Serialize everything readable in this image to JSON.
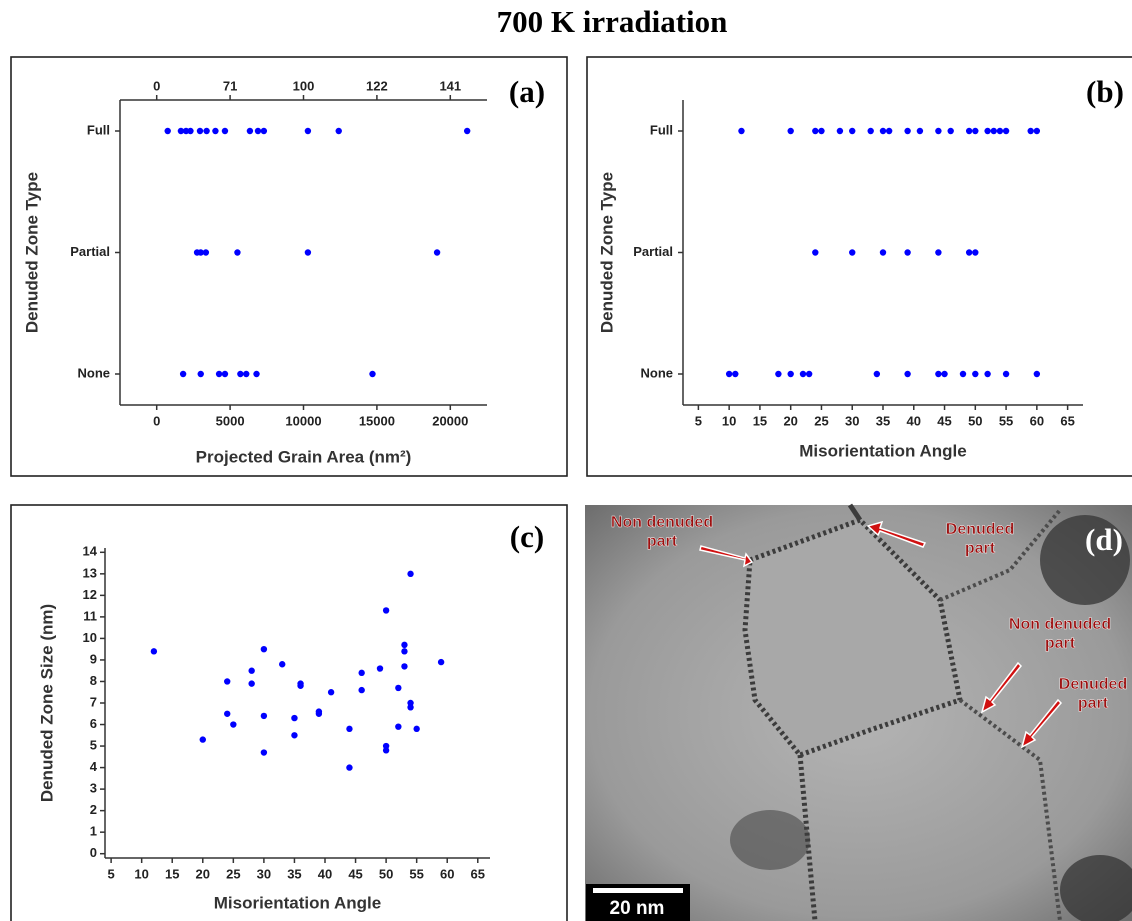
{
  "title": "700 K irradiation",
  "chart_data": [
    {
      "type": "strip",
      "panel_label": "(a)",
      "xlabel": "Projected Grain Area (nm²)",
      "ylabel": "Denuded Zone Type",
      "xlim": [
        -2500,
        22500
      ],
      "xticks": [
        0,
        5000,
        10000,
        15000,
        20000
      ],
      "x2ticks": [
        0,
        {
          "value": 5000,
          "label": "71"
        },
        {
          "value": 10000,
          "label": "100"
        },
        {
          "value": 15000,
          "label": "122"
        },
        {
          "value": 20000,
          "label": "141"
        }
      ],
      "color": "#0000ff",
      "groups": [
        {
          "category": "Full",
          "values": [
            750,
            1650,
            2000,
            2300,
            2950,
            3400,
            4000,
            4650,
            6350,
            6900,
            7300,
            10300,
            12400,
            21150
          ]
        },
        {
          "category": "Partial",
          "values": [
            2750,
            3000,
            3350,
            5500,
            10300,
            19100
          ]
        },
        {
          "category": "None",
          "values": [
            1800,
            3000,
            4250,
            4650,
            5700,
            6100,
            6800,
            14700
          ]
        }
      ]
    },
    {
      "type": "strip",
      "panel_label": "(b)",
      "xlabel": "Misorientation Angle",
      "ylabel": "Denuded Zone Type",
      "xlim": [
        2.5,
        67.5
      ],
      "xticks": [
        5,
        10,
        15,
        20,
        25,
        30,
        35,
        40,
        45,
        50,
        55,
        60,
        65
      ],
      "color": "#0000ff",
      "groups": [
        {
          "category": "Full",
          "values": [
            12,
            20,
            24,
            25,
            28,
            30,
            33,
            35,
            36,
            39,
            41,
            44,
            46,
            49,
            50,
            52,
            53,
            54,
            55,
            59,
            60
          ]
        },
        {
          "category": "Partial",
          "values": [
            24,
            30,
            35,
            39,
            44,
            49,
            50
          ]
        },
        {
          "category": "None",
          "values": [
            10,
            11,
            18,
            20,
            22,
            23,
            34,
            39,
            44,
            45,
            48,
            50,
            52,
            55,
            60
          ]
        }
      ]
    },
    {
      "type": "scatter",
      "panel_label": "(c)",
      "xlabel": "Misorientation Angle",
      "ylabel": "Denuded Zone Size (nm)",
      "xlim": [
        4,
        67
      ],
      "xticks": [
        5,
        10,
        15,
        20,
        25,
        30,
        35,
        40,
        45,
        50,
        55,
        60,
        65
      ],
      "ylim": [
        -0.2,
        14.2
      ],
      "yticks": [
        0,
        1,
        2,
        3,
        4,
        5,
        6,
        7,
        8,
        9,
        10,
        11,
        12,
        13,
        14
      ],
      "color": "#0000ff",
      "x": [
        12,
        20,
        24,
        24,
        25,
        28,
        28,
        30,
        30,
        30,
        33,
        35,
        35,
        36,
        36,
        39,
        39,
        41,
        44,
        44,
        46,
        46,
        49,
        50,
        50,
        50,
        52,
        52,
        53,
        53,
        53,
        54,
        54,
        54,
        55,
        59
      ],
      "values": [
        9.4,
        5.3,
        8.0,
        6.5,
        6.0,
        8.5,
        7.9,
        9.5,
        6.4,
        4.7,
        8.8,
        6.3,
        5.5,
        7.9,
        7.8,
        6.6,
        6.5,
        7.5,
        5.8,
        4.0,
        8.4,
        7.6,
        8.6,
        11.3,
        5.0,
        4.8,
        7.7,
        5.9,
        9.7,
        9.4,
        8.7,
        13.0,
        7.0,
        6.8,
        5.8,
        8.9
      ]
    }
  ],
  "micrograph": {
    "panel_label": "(d)",
    "scale_bar": "20 nm",
    "annotations": [
      {
        "lines": [
          "Non denuded",
          "part"
        ]
      },
      {
        "lines": [
          "Denuded",
          "part"
        ]
      },
      {
        "lines": [
          "Non denuded",
          "part"
        ]
      },
      {
        "lines": [
          "Denuded",
          "part"
        ]
      }
    ]
  }
}
